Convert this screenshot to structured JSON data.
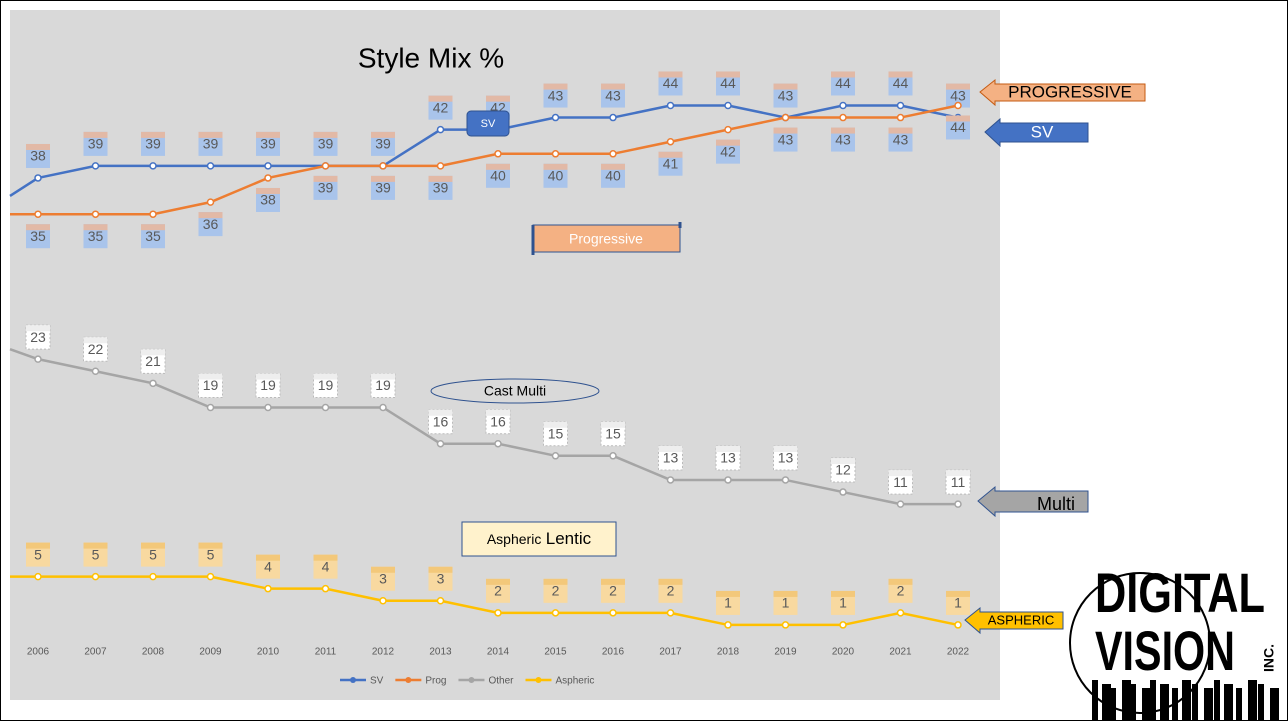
{
  "chart_data": {
    "type": "line",
    "title": "Style Mix %",
    "categories": [
      "2006",
      "2007",
      "2008",
      "2009",
      "2010",
      "2011",
      "2012",
      "2013",
      "2014",
      "2015",
      "2016",
      "2017",
      "2018",
      "2019",
      "2020",
      "2021",
      "2022"
    ],
    "series": [
      {
        "name": "SV",
        "color": "#4472c4",
        "values": [
          38,
          39,
          39,
          39,
          39,
          39,
          39,
          42,
          42,
          43,
          43,
          44,
          44,
          43,
          44,
          44,
          43
        ]
      },
      {
        "name": "Prog",
        "color": "#ed7d31",
        "values": [
          35,
          35,
          35,
          36,
          38,
          39,
          39,
          39,
          40,
          40,
          40,
          41,
          42,
          43,
          43,
          43,
          44
        ]
      },
      {
        "name": "Other",
        "color": "#a5a5a5",
        "values": [
          23,
          22,
          21,
          19,
          19,
          19,
          19,
          16,
          16,
          15,
          15,
          13,
          13,
          13,
          12,
          11,
          11
        ]
      },
      {
        "name": "Aspheric",
        "color": "#ffc000",
        "values": [
          5,
          5,
          5,
          5,
          4,
          4,
          3,
          3,
          2,
          2,
          2,
          2,
          1,
          1,
          1,
          2,
          1
        ]
      }
    ],
    "ylim": [
      0,
      50
    ],
    "legend": "bottom",
    "annotations": {
      "sv_box": "SV",
      "progressive_scroll": "Progressive",
      "cast_multi": "Cast Multi",
      "aspheric_a": "Aspheric",
      "aspheric_b": "Lentic",
      "arrow_progressive": "PROGRESSIVE",
      "arrow_sv": "SV",
      "arrow_multi": "Multi",
      "arrow_aspheric": "ASPHERIC"
    }
  },
  "logo": {
    "line1": "DIGITAL",
    "line2": "VISION",
    "suffix": "INC."
  }
}
